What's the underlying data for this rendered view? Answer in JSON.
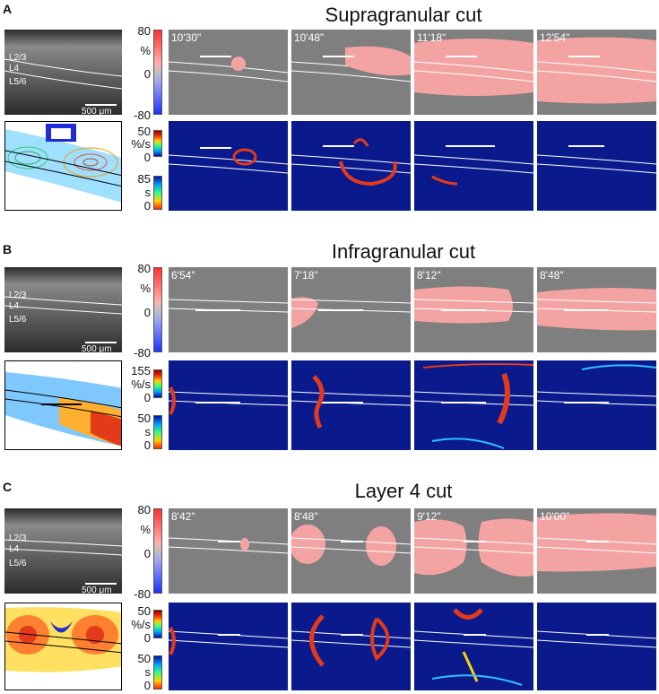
{
  "panels": [
    {
      "letter": "A",
      "title": "Supragranular cut",
      "layers": [
        "L2/3",
        "L4",
        "L5/6"
      ],
      "scale_bar": "500 μm",
      "ticks_percent": [
        "80",
        "%",
        "0",
        "-80"
      ],
      "ticks_rate": [
        "50",
        "%/s",
        "0"
      ],
      "ticks_time": [
        "85",
        "s",
        "0"
      ],
      "times": [
        "10'30\"",
        "10'48\"",
        "11'18\"",
        "12'54\""
      ]
    },
    {
      "letter": "B",
      "title": "Infragranular cut",
      "layers": [
        "L2/3",
        "L4",
        "L5/6"
      ],
      "scale_bar": "500 μm",
      "ticks_percent": [
        "80",
        "%",
        "0",
        "-80"
      ],
      "ticks_rate": [
        "155",
        "%/s",
        "0"
      ],
      "ticks_time": [
        "50",
        "s",
        "0"
      ],
      "times": [
        "6'54\"",
        "7'18\"",
        "8'12\"",
        "8'48\""
      ]
    },
    {
      "letter": "C",
      "title": "Layer 4 cut",
      "layers": [
        "L2/3",
        "L4",
        "L5/6"
      ],
      "scale_bar": "500 μm",
      "ticks_percent": [
        "80",
        "%",
        "0",
        "-80"
      ],
      "ticks_rate": [
        "50",
        "%/s",
        "0"
      ],
      "ticks_time": [
        "50",
        "s",
        "0"
      ],
      "times": [
        "8'42\"",
        "8'48\"",
        "9'12\"",
        "10'00\""
      ]
    }
  ],
  "colors": {
    "heat_overlay": "#f4a3a3",
    "cut_line": "#ffffff",
    "rate_background": "#0a1a8c",
    "rate_wave": "#e23a1a"
  }
}
